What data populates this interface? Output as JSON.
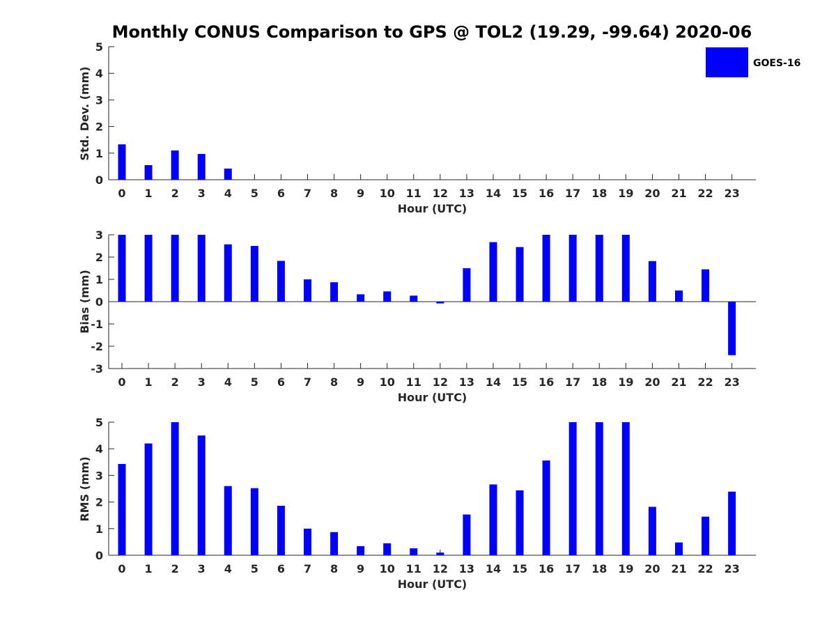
{
  "figure": {
    "title": "Monthly CONUS Comparison to GPS @ TOL2 (19.29, -99.64) 2020-06",
    "bar_color": "#0000ff",
    "legend": {
      "label": "GOES-16",
      "location": "top-right"
    }
  },
  "chart_data": [
    {
      "type": "bar",
      "id": "stddev",
      "title": "",
      "xlabel": "Hour (UTC)",
      "ylabel": "Std. Dev. (mm)",
      "categories": [
        "0",
        "1",
        "2",
        "3",
        "4",
        "5",
        "6",
        "7",
        "8",
        "9",
        "10",
        "11",
        "12",
        "13",
        "14",
        "15",
        "16",
        "17",
        "18",
        "19",
        "20",
        "21",
        "22",
        "23"
      ],
      "series": [
        {
          "name": "GOES-16",
          "values": [
            1.33,
            0.55,
            1.1,
            0.97,
            0.42,
            0,
            0,
            0,
            0,
            0,
            0,
            0,
            0,
            0,
            0,
            0,
            0,
            0,
            0,
            0,
            0,
            0,
            0,
            0
          ]
        }
      ],
      "ylim": [
        0,
        5
      ],
      "yticks": [
        0,
        1,
        2,
        3,
        4,
        5
      ],
      "grid": false
    },
    {
      "type": "bar",
      "id": "bias",
      "title": "",
      "xlabel": "Hour (UTC)",
      "ylabel": "Bias (mm)",
      "categories": [
        "0",
        "1",
        "2",
        "3",
        "4",
        "5",
        "6",
        "7",
        "8",
        "9",
        "10",
        "11",
        "12",
        "13",
        "14",
        "15",
        "16",
        "17",
        "18",
        "19",
        "20",
        "21",
        "22",
        "23"
      ],
      "series": [
        {
          "name": "GOES-16",
          "values": [
            3.0,
            3.0,
            3.0,
            3.0,
            2.57,
            2.5,
            1.83,
            1.0,
            0.87,
            0.33,
            0.46,
            0.27,
            -0.08,
            1.5,
            2.67,
            2.45,
            3.0,
            3.0,
            3.0,
            3.0,
            1.82,
            0.5,
            1.45,
            -2.4
          ]
        }
      ],
      "ylim": [
        -3,
        3
      ],
      "yticks": [
        -3,
        -2,
        -1,
        0,
        1,
        2,
        3
      ],
      "grid": false
    },
    {
      "type": "bar",
      "id": "rms",
      "title": "",
      "xlabel": "Hour (UTC)",
      "ylabel": "RMS (mm)",
      "categories": [
        "0",
        "1",
        "2",
        "3",
        "4",
        "5",
        "6",
        "7",
        "8",
        "9",
        "10",
        "11",
        "12",
        "13",
        "14",
        "15",
        "16",
        "17",
        "18",
        "19",
        "20",
        "21",
        "22",
        "23"
      ],
      "series": [
        {
          "name": "GOES-16",
          "values": [
            3.43,
            4.2,
            5.0,
            4.5,
            2.6,
            2.52,
            1.86,
            1.0,
            0.87,
            0.34,
            0.45,
            0.26,
            0.1,
            1.53,
            2.66,
            2.44,
            3.56,
            5.0,
            5.0,
            5.0,
            1.82,
            0.48,
            1.45,
            2.39
          ]
        }
      ],
      "ylim": [
        0,
        5
      ],
      "yticks": [
        0,
        1,
        2,
        3,
        4,
        5
      ],
      "grid": false
    }
  ]
}
